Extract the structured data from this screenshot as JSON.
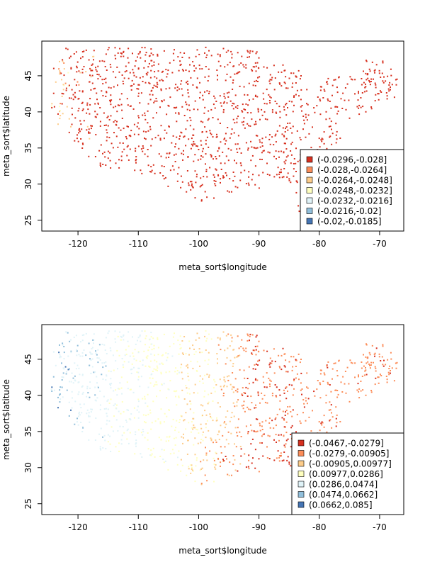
{
  "chart_data": [
    {
      "type": "scatter",
      "title": "",
      "xlabel": "meta_sort$longitude",
      "ylabel": "meta_sort$latitude",
      "xlim": [
        -126,
        -66
      ],
      "ylim": [
        23.5,
        49.8
      ],
      "xticks": [
        "-120",
        "-110",
        "-100",
        "-90",
        "-80",
        "-70"
      ],
      "yticks": [
        "25",
        "30",
        "35",
        "40",
        "45"
      ],
      "legend_position": "bottom-right",
      "legend": [
        {
          "label": "(-0.0296,-0.028]",
          "color": "#d7301f"
        },
        {
          "label": "(-0.028,-0.0264]",
          "color": "#fc8d59"
        },
        {
          "label": "(-0.0264,-0.0248]",
          "color": "#fdcc8a"
        },
        {
          "label": "(-0.0248,-0.0232]",
          "color": "#ffffbf"
        },
        {
          "label": "(-0.0232,-0.0216]",
          "color": "#e0f3f8"
        },
        {
          "label": "(-0.0216,-0.02]",
          "color": "#91bfdb"
        },
        {
          "label": "(-0.02,-0.0185]",
          "color": "#4575b4"
        }
      ],
      "points_summary": "Dense scatter of sampling sites across the contiguous United States; nearly all sites fall in the lowest bin (dark red), with a few lighter points along the far west coast."
    },
    {
      "type": "scatter",
      "title": "",
      "xlabel": "meta_sort$longitude",
      "ylabel": "meta_sort$latitude",
      "xlim": [
        -126,
        -66
      ],
      "ylim": [
        23.5,
        49.8
      ],
      "xticks": [
        "-120",
        "-110",
        "-100",
        "-90",
        "-80",
        "-70"
      ],
      "yticks": [
        "25",
        "30",
        "35",
        "40",
        "45"
      ],
      "legend_position": "bottom-right",
      "legend": [
        {
          "label": "(-0.0467,-0.0279]",
          "color": "#d7301f"
        },
        {
          "label": "(-0.0279,-0.00905]",
          "color": "#fc8d59"
        },
        {
          "label": "(-0.00905,0.00977]",
          "color": "#fdcc8a"
        },
        {
          "label": "(0.00977,0.0286]",
          "color": "#ffffbf"
        },
        {
          "label": "(0.0286,0.0474]",
          "color": "#e0f3f8"
        },
        {
          "label": "(0.0474,0.0662]",
          "color": "#91bfdb"
        },
        {
          "label": "(0.0662,0.085]",
          "color": "#4575b4"
        }
      ],
      "points_summary": "Same sites colored by a west-to-east gradient: blue/light blue in the far west, pale yellow in the interior west, light orange in the plains, orange and red toward the east and south-east."
    }
  ]
}
